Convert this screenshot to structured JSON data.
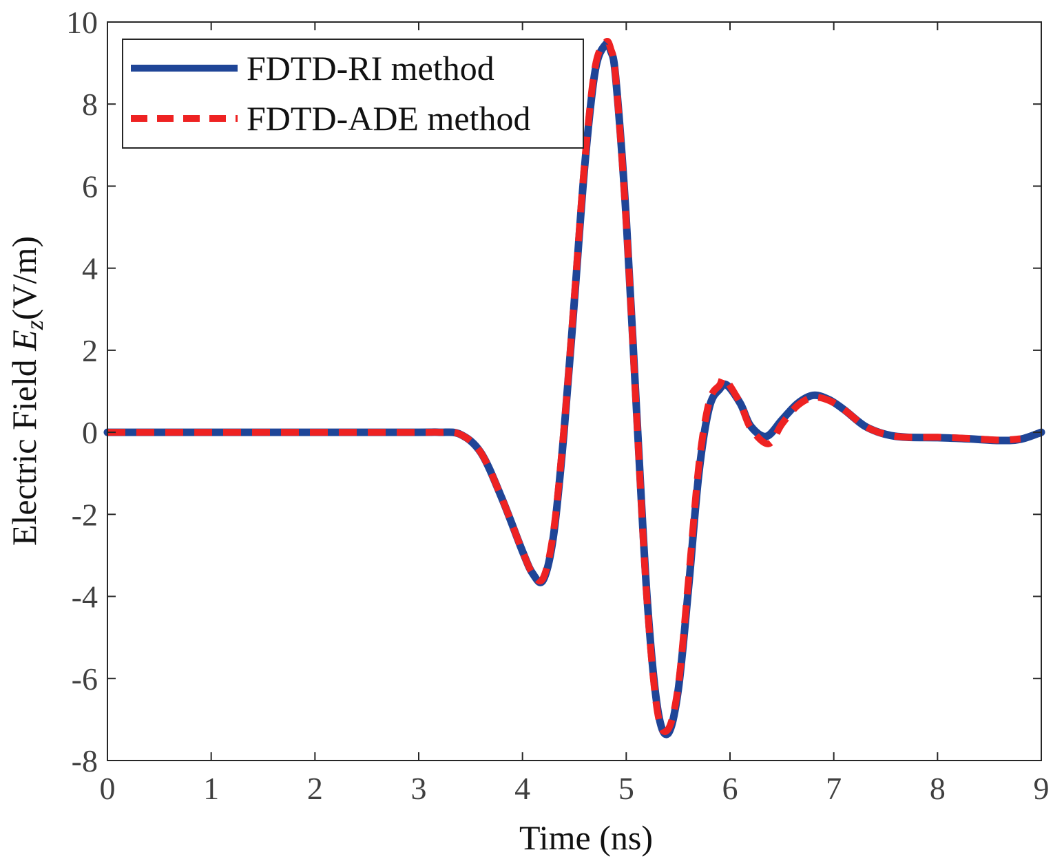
{
  "chart_data": {
    "type": "line",
    "xlabel": "Time (ns)",
    "ylabel": {
      "prefix": "Electric Field ",
      "symbol": "E",
      "subscript": "z",
      "suffix": "(V/m)"
    },
    "xlim": [
      0,
      9
    ],
    "ylim": [
      -8,
      10
    ],
    "xticks": [
      0,
      1,
      2,
      3,
      4,
      5,
      6,
      7,
      8,
      9
    ],
    "yticks": [
      -8,
      -6,
      -4,
      -2,
      0,
      2,
      4,
      6,
      8,
      10
    ],
    "grid": false,
    "legend_position": "top-left",
    "series": [
      {
        "name": "FDTD-RI method",
        "color": "#1f4597",
        "style": "solid",
        "x": [
          0,
          1,
          2,
          3,
          3.2,
          3.4,
          3.6,
          3.8,
          4.0,
          4.1,
          4.2,
          4.3,
          4.4,
          4.5,
          4.6,
          4.7,
          4.8,
          4.85,
          4.9,
          5.0,
          5.1,
          5.2,
          5.3,
          5.4,
          5.5,
          5.6,
          5.7,
          5.8,
          5.9,
          5.97,
          6.1,
          6.2,
          6.35,
          6.5,
          6.65,
          6.8,
          6.95,
          7.1,
          7.3,
          7.5,
          7.7,
          8.0,
          8.3,
          8.6,
          8.8,
          9.0
        ],
        "y": [
          0,
          0,
          0,
          0,
          0,
          -0.05,
          -0.5,
          -1.6,
          -2.9,
          -3.45,
          -3.6,
          -2.5,
          0.0,
          3.2,
          6.5,
          8.8,
          9.45,
          9.3,
          8.6,
          5.2,
          0.5,
          -4.0,
          -6.7,
          -7.35,
          -6.3,
          -3.8,
          -1.0,
          0.6,
          1.05,
          1.15,
          0.7,
          0.15,
          -0.1,
          0.3,
          0.7,
          0.9,
          0.8,
          0.55,
          0.15,
          -0.05,
          -0.12,
          -0.13,
          -0.16,
          -0.2,
          -0.17,
          0.0
        ]
      },
      {
        "name": "FDTD-ADE method",
        "color": "#ee2222",
        "style": "dashed",
        "x": [
          0,
          1,
          2,
          3,
          3.2,
          3.4,
          3.6,
          3.8,
          4.0,
          4.1,
          4.2,
          4.3,
          4.4,
          4.5,
          4.6,
          4.7,
          4.8,
          4.85,
          4.9,
          5.0,
          5.1,
          5.2,
          5.3,
          5.4,
          5.5,
          5.6,
          5.7,
          5.8,
          5.9,
          5.95,
          6.1,
          6.2,
          6.37,
          6.5,
          6.65,
          6.8,
          6.95,
          7.1,
          7.3,
          7.5,
          7.7,
          8.0,
          8.3,
          8.6,
          8.8
        ],
        "y": [
          0,
          0,
          0,
          0,
          0,
          -0.05,
          -0.5,
          -1.6,
          -2.9,
          -3.45,
          -3.55,
          -2.4,
          0.1,
          3.3,
          6.6,
          8.9,
          9.5,
          9.35,
          8.6,
          5.1,
          0.4,
          -4.1,
          -6.8,
          -7.25,
          -6.2,
          -3.6,
          -0.8,
          0.75,
          1.15,
          1.3,
          0.7,
          0.1,
          -0.28,
          0.2,
          0.65,
          0.85,
          0.78,
          0.55,
          0.15,
          -0.05,
          -0.12,
          -0.12,
          -0.15,
          -0.19,
          -0.16
        ]
      }
    ]
  }
}
